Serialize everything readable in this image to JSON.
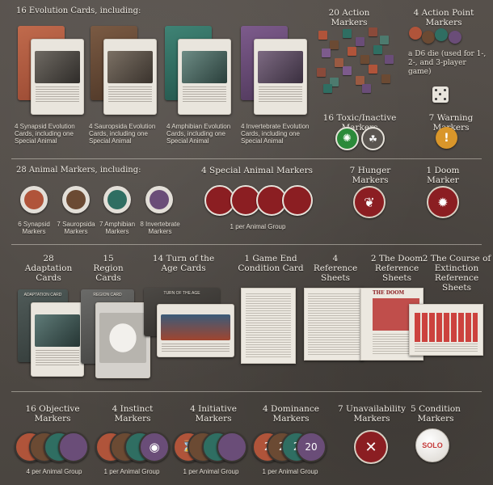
{
  "sections": {
    "evolution": {
      "heading": "16 Evolution Cards, including:",
      "captions": [
        "4 Synapsid Evolution Cards, including one Special Animal",
        "4 Sauropsida Evolution Cards, including one Special Animal",
        "4 Amphibian Evolution Cards, including one Special Animal",
        "4 Invertebrate Evolution Cards, including one Special Animal"
      ]
    },
    "action_markers": {
      "heading": "20 Action Markers"
    },
    "action_point_markers": {
      "heading": "4 Action Point Markers",
      "die_text": "a D6 die (used for 1-, 2-, and 3-player game)"
    },
    "toxic": {
      "heading": "16 Toxic/Inactive Markers"
    },
    "warning": {
      "heading": "7 Warning Markers"
    },
    "animal_markers": {
      "heading": "28 Animal Markers, including:",
      "captions": [
        "6 Synapsid Markers",
        "7 Sauropsida Markers",
        "7 Amphibian Markers",
        "8 Invertebrate Markers"
      ]
    },
    "special_animal": {
      "heading": "4 Special Animal Markers",
      "caption": "1 per Animal Group"
    },
    "hunger": {
      "heading": "7 Hunger Markers"
    },
    "doom_marker": {
      "heading": "1 Doom Marker"
    },
    "adaptation": {
      "heading": "28 Adaptation Cards"
    },
    "region": {
      "heading": "15 Region Cards"
    },
    "turn_of_age": {
      "heading": "14 Turn of the Age Cards"
    },
    "game_end": {
      "heading": "1 Game End Condition Card"
    },
    "reference": {
      "heading": "4 Reference Sheets"
    },
    "doom_ref": {
      "heading": "2 The Doom Reference Sheets"
    },
    "course_ref": {
      "heading": "2 The Course of Extinction Reference Sheets"
    },
    "objective": {
      "heading": "16 Objective Markers",
      "caption": "4 per Animal Group"
    },
    "instinct": {
      "heading": "4 Instinct Markers",
      "caption": "1 per Animal Group"
    },
    "initiative": {
      "heading": "4 Initiative Markers",
      "caption": "1 per Animal Group"
    },
    "dominance": {
      "heading": "4 Dominance Markers",
      "caption": "1 per Animal Group"
    },
    "unavailability": {
      "heading": "7 Unavailability Markers"
    },
    "condition": {
      "heading": "5 Condition Markers",
      "token_text": "SOLO"
    }
  },
  "card_text": {
    "doom_sheet_title": "THE DOOM",
    "adaptation_card": "ADAPTATION CARD",
    "region_card": "REGION CARD",
    "turn_of_age_card": "TURN OF THE AGE"
  },
  "dominance_numbers": [
    "2",
    "2",
    "2",
    "20"
  ],
  "colors": {
    "synapsid": "#b0543a",
    "sauropsida": "#6b4a33",
    "amphibian": "#2f6e62",
    "invertebrate": "#6a4d78",
    "marker_red": "#8b1e22",
    "warning_orange": "#d9962a",
    "toxic_green": "#2b8a3a"
  }
}
